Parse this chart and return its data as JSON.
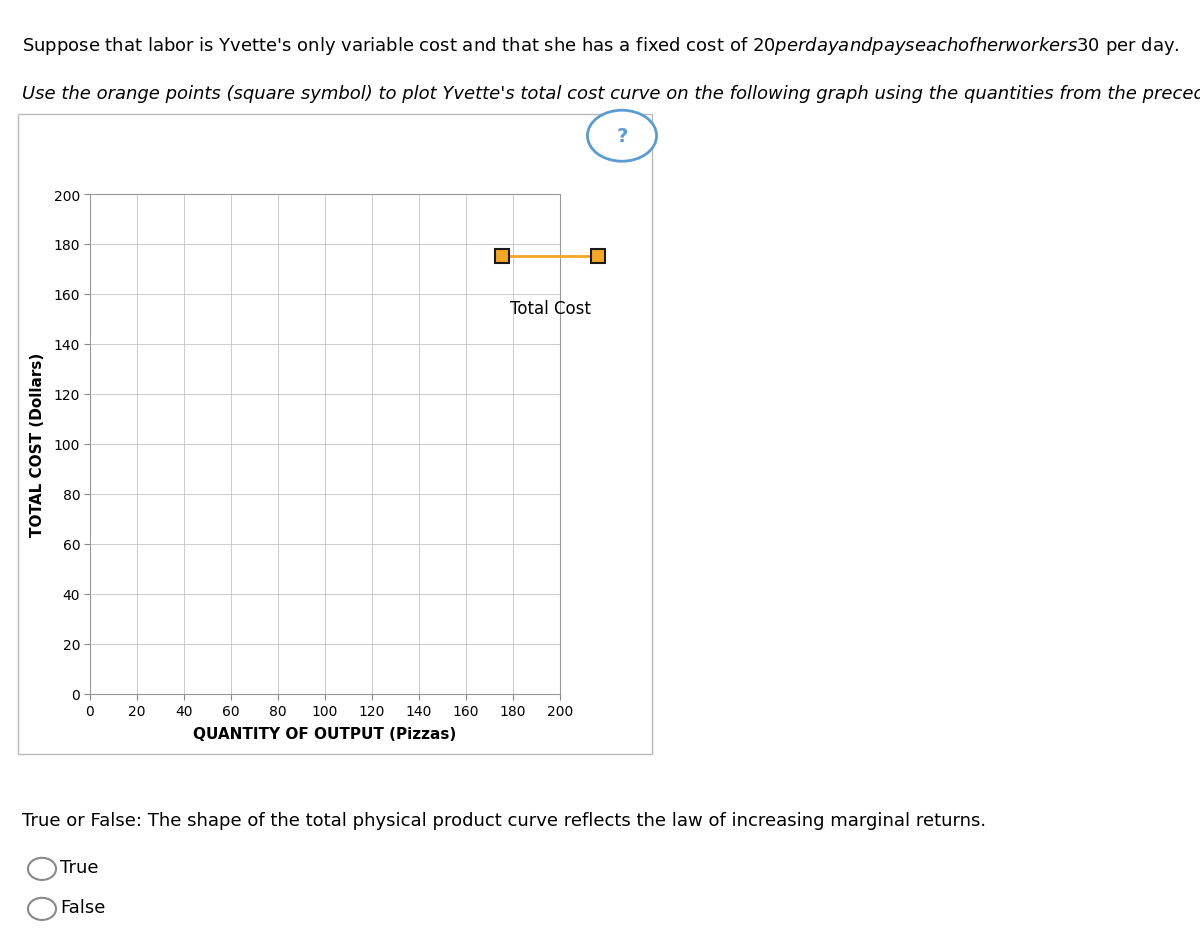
{
  "title_line1": "Suppose that labor is Yvette's only variable cost and that she has a fixed cost of $20 per day and pays each of her workers $30 per day.",
  "title_line2": "Use the orange points (square symbol) to plot Yvette's total cost curve on the following graph using the quantities from the preceding table.",
  "ylabel": "TOTAL COST (Dollars)",
  "xlabel": "QUANTITY OF OUTPUT (Pizzas)",
  "xlim": [
    0,
    200
  ],
  "ylim": [
    0,
    200
  ],
  "xticks": [
    0,
    20,
    40,
    60,
    80,
    100,
    120,
    140,
    160,
    180,
    200
  ],
  "yticks": [
    0,
    20,
    40,
    60,
    80,
    100,
    120,
    140,
    160,
    180,
    200
  ],
  "legend_label": "Total Cost",
  "marker_color": "#F5A623",
  "marker_edge_color": "#1a1a1a",
  "line_color": "#F5A623",
  "true_false_question": "True or False: The shape of the total physical product curve reflects the law of increasing marginal returns.",
  "true_label": "True",
  "false_label": "False",
  "background_color": "#FFFFFF",
  "plot_bg_color": "#FFFFFF",
  "grid_color": "#CCCCCC",
  "question_icon_color": "#5B9BD5",
  "text_color": "#000000",
  "outer_box_color": "#BBBBBB",
  "font_size_body": 13,
  "font_size_axis_label": 11,
  "font_size_tick": 10,
  "font_size_legend": 12
}
